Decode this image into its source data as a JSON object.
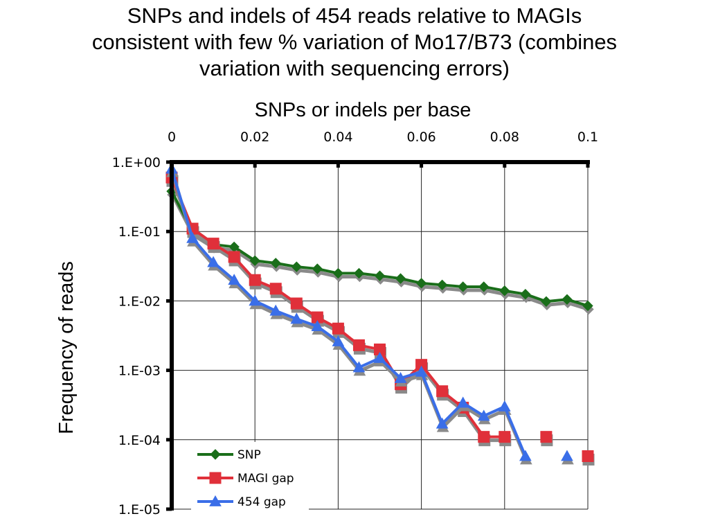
{
  "chart_data": {
    "type": "line",
    "title_lines": [
      "SNPs and indels of 454 reads relative to MAGIs",
      "consistent with few % variation of Mo17/B73 (combines",
      "variation with sequencing errors)"
    ],
    "xlabel": "SNPs or indels per base",
    "ylabel": "Frequency of reads",
    "xlim": [
      0,
      0.1
    ],
    "x_axis_position": "top",
    "x_ticks": [
      0,
      0.02,
      0.04,
      0.06,
      0.08,
      0.1
    ],
    "x_tick_labels": [
      "0",
      "0.02",
      "0.04",
      "0.06",
      "0.08",
      "0.1"
    ],
    "y_scale": "log",
    "ylim": [
      1e-05,
      1
    ],
    "y_ticks": [
      1,
      0.1,
      0.01,
      0.001,
      0.0001,
      1e-05
    ],
    "y_tick_labels": [
      "1.E+00",
      "1.E-01",
      "1.E-02",
      "1.E-03",
      "1.E-04",
      "1.E-05"
    ],
    "grid": true,
    "legend_position": "bottom-left",
    "series": [
      {
        "name": "SNP",
        "color": "#1a6e1a",
        "marker": "diamond",
        "points": [
          [
            0,
            0.38
          ],
          [
            0.005,
            0.1
          ],
          [
            0.01,
            0.065
          ],
          [
            0.015,
            0.06
          ],
          [
            0.02,
            0.038
          ],
          [
            0.025,
            0.035
          ],
          [
            0.03,
            0.031
          ],
          [
            0.035,
            0.029
          ],
          [
            0.04,
            0.025
          ],
          [
            0.045,
            0.025
          ],
          [
            0.05,
            0.023
          ],
          [
            0.055,
            0.021
          ],
          [
            0.06,
            0.018
          ],
          [
            0.065,
            0.017
          ],
          [
            0.07,
            0.016
          ],
          [
            0.075,
            0.016
          ],
          [
            0.08,
            0.014
          ],
          [
            0.085,
            0.0125
          ],
          [
            0.09,
            0.0098
          ],
          [
            0.095,
            0.0105
          ],
          [
            0.1,
            0.0085
          ]
        ]
      },
      {
        "name": "MAGI gap",
        "color": "#e0303a",
        "marker": "square",
        "points": [
          [
            0,
            0.6
          ],
          [
            0.005,
            0.11
          ],
          [
            0.01,
            0.067
          ],
          [
            0.015,
            0.043
          ],
          [
            0.02,
            0.02
          ],
          [
            0.025,
            0.015
          ],
          [
            0.03,
            0.0092
          ],
          [
            0.035,
            0.0058
          ],
          [
            0.04,
            0.004
          ],
          [
            0.045,
            0.0023
          ],
          [
            0.05,
            0.002
          ],
          [
            0.055,
            0.00063
          ],
          [
            0.06,
            0.0012
          ],
          [
            0.065,
            0.0005
          ],
          [
            0.07,
            0.00029
          ],
          [
            0.075,
            0.00011
          ],
          [
            0.08,
            0.00011
          ],
          null,
          [
            0.09,
            0.00011
          ],
          null,
          [
            0.1,
            5.8e-05
          ]
        ]
      },
      {
        "name": "454 gap",
        "color": "#3a6ee8",
        "marker": "triangle",
        "points": [
          [
            0,
            0.8
          ],
          [
            0.005,
            0.08
          ],
          [
            0.01,
            0.036
          ],
          [
            0.015,
            0.02
          ],
          [
            0.02,
            0.01
          ],
          [
            0.025,
            0.0072
          ],
          [
            0.03,
            0.0055
          ],
          [
            0.035,
            0.0043
          ],
          [
            0.04,
            0.0026
          ],
          [
            0.045,
            0.0011
          ],
          [
            0.05,
            0.0015
          ],
          [
            0.055,
            0.00077
          ],
          [
            0.06,
            0.00095
          ],
          [
            0.065,
            0.00017
          ],
          [
            0.07,
            0.00034
          ],
          [
            0.075,
            0.00022
          ],
          [
            0.08,
            0.0003
          ],
          [
            0.085,
            5.8e-05
          ],
          null,
          [
            0.095,
            5.8e-05
          ]
        ]
      }
    ]
  }
}
